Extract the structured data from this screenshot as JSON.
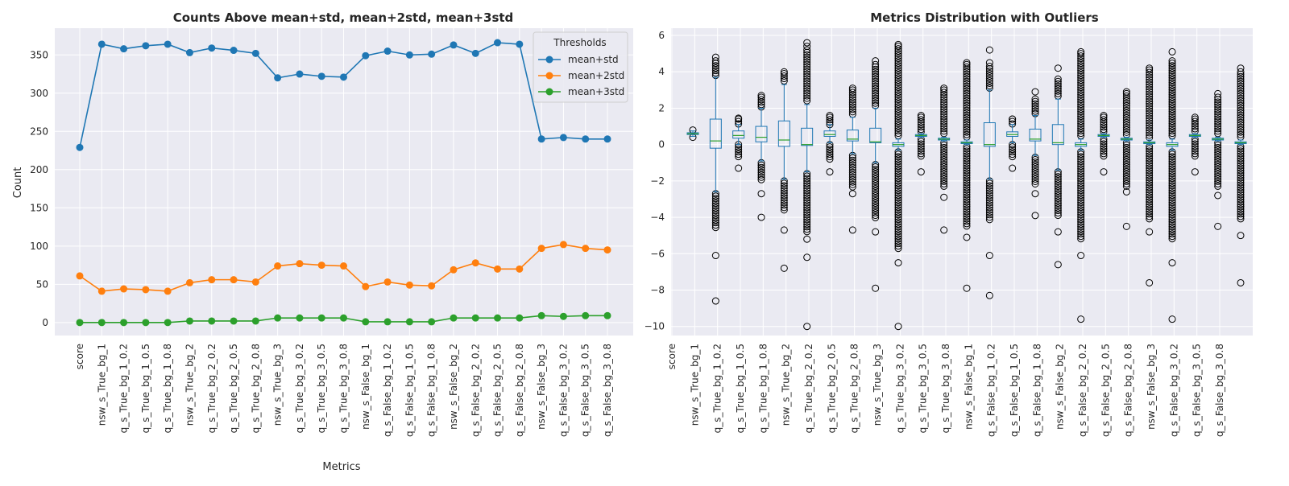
{
  "chart_data": [
    {
      "type": "line",
      "title": "Counts Above mean+std, mean+2std, mean+3std",
      "xlabel": "Metrics",
      "ylabel": "Count",
      "ylim": [
        -17,
        385
      ],
      "yticks": [
        0,
        50,
        100,
        150,
        200,
        250,
        300,
        350
      ],
      "grid": true,
      "legend": {
        "title": "Thresholds",
        "position": "top-right"
      },
      "categories": [
        "score",
        "nsw_s_True_bg_1",
        "q_s_True_bg_1_0.2",
        "q_s_True_bg_1_0.5",
        "q_s_True_bg_1_0.8",
        "nsw_s_True_bg_2",
        "q_s_True_bg_2_0.2",
        "q_s_True_bg_2_0.5",
        "q_s_True_bg_2_0.8",
        "nsw_s_True_bg_3",
        "q_s_True_bg_3_0.2",
        "q_s_True_bg_3_0.5",
        "q_s_True_bg_3_0.8",
        "nsw_s_False_bg_1",
        "q_s_False_bg_1_0.2",
        "q_s_False_bg_1_0.5",
        "q_s_False_bg_1_0.8",
        "nsw_s_False_bg_2",
        "q_s_False_bg_2_0.2",
        "q_s_False_bg_2_0.5",
        "q_s_False_bg_2_0.8",
        "nsw_s_False_bg_3",
        "q_s_False_bg_3_0.2",
        "q_s_False_bg_3_0.5",
        "q_s_False_bg_3_0.8"
      ],
      "series": [
        {
          "name": "mean+std",
          "color": "#1f77b4",
          "values": [
            229,
            364,
            358,
            362,
            364,
            353,
            359,
            356,
            352,
            320,
            325,
            322,
            321,
            349,
            355,
            350,
            351,
            363,
            352,
            366,
            364,
            240,
            242,
            240,
            240
          ]
        },
        {
          "name": "mean+2std",
          "color": "#ff7f0e",
          "values": [
            61,
            41,
            44,
            43,
            41,
            52,
            56,
            56,
            53,
            74,
            77,
            75,
            74,
            47,
            53,
            49,
            48,
            69,
            78,
            70,
            70,
            97,
            102,
            97,
            95
          ]
        },
        {
          "name": "mean+3std",
          "color": "#2ca02c",
          "values": [
            0,
            0,
            0,
            0,
            0,
            2,
            2,
            2,
            2,
            6,
            6,
            6,
            6,
            1,
            1,
            1,
            1,
            6,
            6,
            6,
            6,
            9,
            8,
            9,
            9
          ]
        }
      ]
    },
    {
      "type": "box",
      "title": "Metrics Distribution with Outliers",
      "ylim": [
        -10.5,
        6.4
      ],
      "yticks": [
        -10,
        -8,
        -6,
        -4,
        -2,
        0,
        2,
        4,
        6
      ],
      "grid": true,
      "categories": [
        "score",
        "nsw_s_True_bg_1",
        "q_s_True_bg_1_0.2",
        "q_s_True_bg_1_0.5",
        "q_s_True_bg_1_0.8",
        "nsw_s_True_bg_2",
        "q_s_True_bg_2_0.2",
        "q_s_True_bg_2_0.5",
        "q_s_True_bg_2_0.8",
        "nsw_s_True_bg_3",
        "q_s_True_bg_3_0.2",
        "q_s_True_bg_3_0.5",
        "q_s_True_bg_3_0.8",
        "nsw_s_False_bg_1",
        "q_s_False_bg_1_0.2",
        "q_s_False_bg_1_0.5",
        "q_s_False_bg_1_0.8",
        "nsw_s_False_bg_2",
        "q_s_False_bg_2_0.2",
        "q_s_False_bg_2_0.5",
        "q_s_False_bg_2_0.8",
        "nsw_s_False_bg_3",
        "q_s_False_bg_3_0.2",
        "q_s_False_bg_3_0.5",
        "q_s_False_bg_3_0.8"
      ],
      "boxes": [
        {
          "q1": 0.55,
          "median": 0.6,
          "q3": 0.65,
          "whisker_low": 0.45,
          "whisker_high": 0.75,
          "outliers_high": [
            0.8
          ],
          "outliers_low": [
            0.4
          ],
          "dense_high": null,
          "dense_low": null
        },
        {
          "q1": -0.2,
          "median": 0.2,
          "q3": 1.4,
          "whisker_low": -2.6,
          "whisker_high": 3.7,
          "outliers_high": [
            4.8
          ],
          "outliers_low": [
            -6.1,
            -8.6
          ],
          "dense_high": [
            3.8,
            4.6
          ],
          "dense_low": [
            -4.6,
            -2.7
          ]
        },
        {
          "q1": 0.35,
          "median": 0.5,
          "q3": 0.75,
          "whisker_low": 0.0,
          "whisker_high": 1.1,
          "outliers_high": [
            1.45
          ],
          "outliers_low": [
            -1.3
          ],
          "dense_high": [
            1.1,
            1.4
          ],
          "dense_low": [
            -0.7,
            0.0
          ]
        },
        {
          "q1": 0.15,
          "median": 0.4,
          "q3": 1.0,
          "whisker_low": -0.9,
          "whisker_high": 2.0,
          "outliers_high": [
            2.7
          ],
          "outliers_low": [
            -2.7,
            -4.0
          ],
          "dense_high": [
            2.0,
            2.6
          ],
          "dense_low": [
            -2.0,
            -1.0
          ]
        },
        {
          "q1": -0.1,
          "median": 0.25,
          "q3": 1.3,
          "whisker_low": -1.9,
          "whisker_high": 3.3,
          "outliers_high": [
            4.0
          ],
          "outliers_low": [
            -4.7,
            -6.8
          ],
          "dense_high": [
            3.4,
            3.9
          ],
          "dense_low": [
            -3.6,
            -2.0
          ]
        },
        {
          "q1": -0.05,
          "median": 0.0,
          "q3": 0.9,
          "whisker_low": -1.5,
          "whisker_high": 2.2,
          "outliers_high": [
            5.4,
            5.6
          ],
          "outliers_low": [
            -5.2,
            -6.2,
            -10.0
          ],
          "dense_high": [
            2.3,
            5.2
          ],
          "dense_low": [
            -4.8,
            -1.6
          ]
        },
        {
          "q1": 0.45,
          "median": 0.55,
          "q3": 0.75,
          "whisker_low": 0.1,
          "whisker_high": 1.1,
          "outliers_high": [
            1.6
          ],
          "outliers_low": [
            -1.5
          ],
          "dense_high": [
            1.1,
            1.5
          ],
          "dense_low": [
            -0.8,
            0.0
          ]
        },
        {
          "q1": 0.2,
          "median": 0.3,
          "q3": 0.8,
          "whisker_low": -0.5,
          "whisker_high": 1.5,
          "outliers_high": [
            3.1
          ],
          "outliers_low": [
            -2.7,
            -4.7
          ],
          "dense_high": [
            1.6,
            3.0
          ],
          "dense_low": [
            -2.4,
            -0.6
          ]
        },
        {
          "q1": 0.1,
          "median": 0.15,
          "q3": 0.9,
          "whisker_low": -1.0,
          "whisker_high": 2.0,
          "outliers_high": [
            4.6
          ],
          "outliers_low": [
            -4.8,
            -7.9
          ],
          "dense_high": [
            2.1,
            4.4
          ],
          "dense_low": [
            -4.1,
            -1.1
          ]
        },
        {
          "q1": -0.1,
          "median": 0.0,
          "q3": 0.1,
          "whisker_low": -0.3,
          "whisker_high": 0.3,
          "outliers_high": [
            5.5
          ],
          "outliers_low": [
            -6.5,
            -10.0
          ],
          "dense_high": [
            0.4,
            5.4
          ],
          "dense_low": [
            -5.8,
            -0.4
          ]
        },
        {
          "q1": 0.45,
          "median": 0.5,
          "q3": 0.55,
          "whisker_low": 0.4,
          "whisker_high": 0.6,
          "outliers_high": [
            1.6
          ],
          "outliers_low": [
            -1.5
          ],
          "dense_high": [
            0.7,
            1.5
          ],
          "dense_low": [
            -0.7,
            0.3
          ]
        },
        {
          "q1": 0.25,
          "median": 0.3,
          "q3": 0.35,
          "whisker_low": 0.2,
          "whisker_high": 0.4,
          "outliers_high": [
            3.1
          ],
          "outliers_low": [
            -2.9,
            -4.7
          ],
          "dense_high": [
            0.5,
            3.0
          ],
          "dense_low": [
            -2.4,
            0.1
          ]
        },
        {
          "q1": 0.05,
          "median": 0.1,
          "q3": 0.15,
          "whisker_low": 0.0,
          "whisker_high": 0.25,
          "outliers_high": [
            4.5
          ],
          "outliers_low": [
            -5.1,
            -7.9
          ],
          "dense_high": [
            0.3,
            4.4
          ],
          "dense_low": [
            -4.5,
            -0.1
          ]
        },
        {
          "q1": -0.1,
          "median": 0.0,
          "q3": 1.2,
          "whisker_low": -1.9,
          "whisker_high": 3.0,
          "outliers_high": [
            4.5,
            5.2
          ],
          "outliers_low": [
            -6.1,
            -8.3
          ],
          "dense_high": [
            3.1,
            4.3
          ],
          "dense_low": [
            -4.2,
            -2.0
          ]
        },
        {
          "q1": 0.45,
          "median": 0.55,
          "q3": 0.7,
          "whisker_low": 0.1,
          "whisker_high": 1.1,
          "outliers_high": [
            1.4
          ],
          "outliers_low": [
            -1.3
          ],
          "dense_high": [
            1.1,
            1.4
          ],
          "dense_low": [
            -0.7,
            0.0
          ]
        },
        {
          "q1": 0.2,
          "median": 0.3,
          "q3": 0.85,
          "whisker_low": -0.6,
          "whisker_high": 1.6,
          "outliers_high": [
            2.9
          ],
          "outliers_low": [
            -2.7,
            -3.9
          ],
          "dense_high": [
            1.7,
            2.5
          ],
          "dense_low": [
            -2.2,
            -0.7
          ]
        },
        {
          "q1": 0.0,
          "median": 0.1,
          "q3": 1.1,
          "whisker_low": -1.4,
          "whisker_high": 2.5,
          "outliers_high": [
            4.2
          ],
          "outliers_low": [
            -4.8,
            -6.6
          ],
          "dense_high": [
            2.6,
            3.6
          ],
          "dense_low": [
            -3.9,
            -1.5
          ]
        },
        {
          "q1": -0.1,
          "median": 0.0,
          "q3": 0.1,
          "whisker_low": -0.3,
          "whisker_high": 0.3,
          "outliers_high": [
            5.1
          ],
          "outliers_low": [
            -6.1,
            -9.6
          ],
          "dense_high": [
            0.4,
            5.0
          ],
          "dense_low": [
            -5.3,
            -0.4
          ]
        },
        {
          "q1": 0.45,
          "median": 0.5,
          "q3": 0.55,
          "whisker_low": 0.4,
          "whisker_high": 0.6,
          "outliers_high": [
            1.6
          ],
          "outliers_low": [
            -1.5
          ],
          "dense_high": [
            0.7,
            1.5
          ],
          "dense_low": [
            -0.7,
            0.3
          ]
        },
        {
          "q1": 0.25,
          "median": 0.3,
          "q3": 0.35,
          "whisker_low": 0.2,
          "whisker_high": 0.4,
          "outliers_high": [
            2.9
          ],
          "outliers_low": [
            -2.6,
            -4.5
          ],
          "dense_high": [
            0.5,
            2.8
          ],
          "dense_low": [
            -2.3,
            0.1
          ]
        },
        {
          "q1": 0.05,
          "median": 0.1,
          "q3": 0.15,
          "whisker_low": 0.0,
          "whisker_high": 0.25,
          "outliers_high": [
            4.2
          ],
          "outliers_low": [
            -4.8,
            -7.6
          ],
          "dense_high": [
            0.3,
            4.1
          ],
          "dense_low": [
            -4.1,
            -0.1
          ]
        },
        {
          "q1": -0.1,
          "median": 0.0,
          "q3": 0.1,
          "whisker_low": -0.3,
          "whisker_high": 0.3,
          "outliers_high": [
            5.1
          ],
          "outliers_low": [
            -6.5,
            -9.6
          ],
          "dense_high": [
            0.4,
            4.6
          ],
          "dense_low": [
            -5.3,
            -0.4
          ]
        },
        {
          "q1": 0.45,
          "median": 0.5,
          "q3": 0.55,
          "whisker_low": 0.4,
          "whisker_high": 0.6,
          "outliers_high": [
            1.5
          ],
          "outliers_low": [
            -1.5
          ],
          "dense_high": [
            0.7,
            1.4
          ],
          "dense_low": [
            -0.7,
            0.3
          ]
        },
        {
          "q1": 0.25,
          "median": 0.3,
          "q3": 0.35,
          "whisker_low": 0.2,
          "whisker_high": 0.4,
          "outliers_high": [
            2.8
          ],
          "outliers_low": [
            -2.8,
            -4.5
          ],
          "dense_high": [
            0.5,
            2.6
          ],
          "dense_low": [
            -2.4,
            0.1
          ]
        },
        {
          "q1": 0.05,
          "median": 0.1,
          "q3": 0.15,
          "whisker_low": 0.0,
          "whisker_high": 0.25,
          "outliers_high": [
            4.2
          ],
          "outliers_low": [
            -5.0,
            -7.6
          ],
          "dense_high": [
            0.3,
            4.0
          ],
          "dense_low": [
            -4.1,
            -0.1
          ]
        }
      ]
    }
  ]
}
